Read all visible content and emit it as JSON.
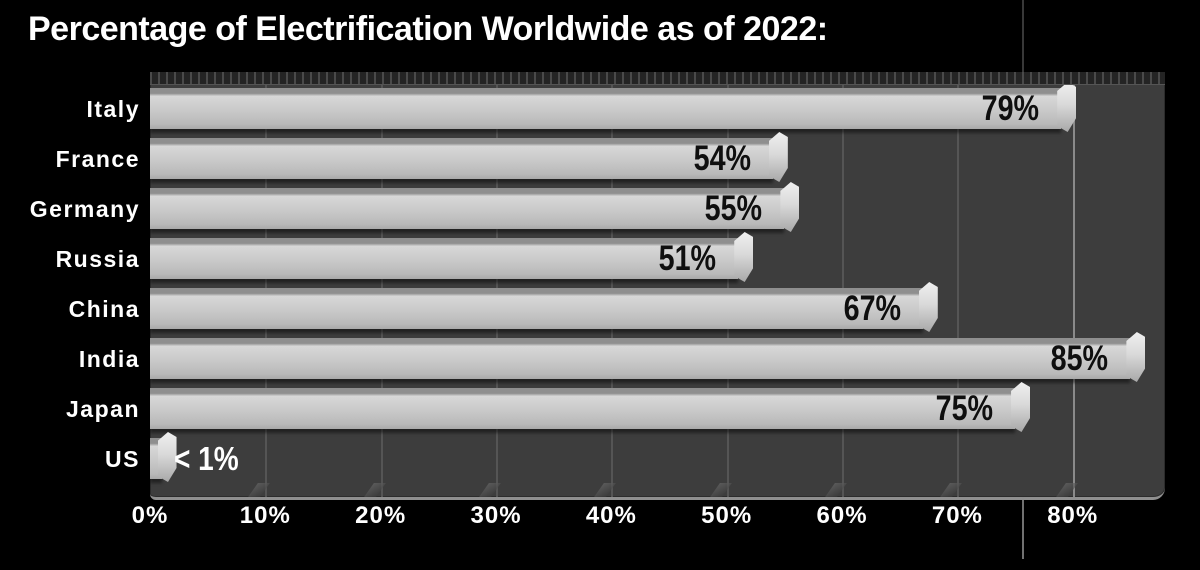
{
  "title": "Percentage of Electrification Worldwide as of 2022:",
  "colors": {
    "background": "#000000",
    "plot_background": "#3d3d3d",
    "bar_fill": "#c9c9c9",
    "bar_top_face": "#8f8f8f",
    "gridline": "#555555",
    "gridline_major": "#8a8a8a",
    "value_label_inside": "#0f0f0f",
    "value_label_outside": "#ffffff",
    "axis_text": "#ffffff",
    "title_text": "#ffffff"
  },
  "chart_data": {
    "type": "bar",
    "orientation": "horizontal",
    "title": "Percentage of Electrification Worldwide as of 2022:",
    "categories": [
      "Italy",
      "France",
      "Germany",
      "Russia",
      "China",
      "India",
      "Japan",
      "US"
    ],
    "values": [
      79,
      54,
      55,
      51,
      67,
      85,
      75,
      1
    ],
    "value_labels": [
      "79%",
      "54%",
      "55%",
      "51%",
      "67%",
      "85%",
      "75%",
      "< 1%"
    ],
    "x_tick_labels": [
      "0%",
      "10%",
      "20%",
      "30%",
      "40%",
      "50%",
      "60%",
      "70%",
      "80%"
    ],
    "x_tick_values": [
      0,
      10,
      20,
      30,
      40,
      50,
      60,
      70,
      80
    ],
    "xlim": [
      0,
      88
    ],
    "xlabel": "",
    "ylabel": "",
    "grid": true,
    "legend": false
  }
}
